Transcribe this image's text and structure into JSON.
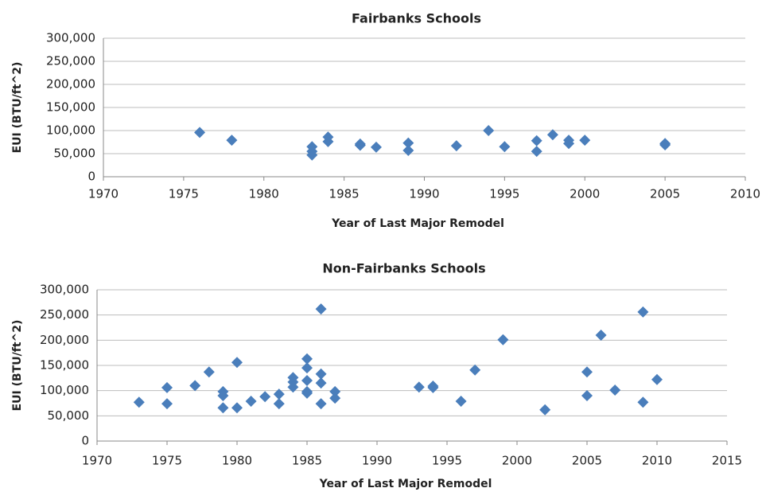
{
  "chart_data": [
    {
      "type": "scatter",
      "title": "Fairbanks Schools",
      "x_label": "Year of Last Major Remodel",
      "y_label": "EUI (BTU/ft^2)",
      "color": "#4a7ebb",
      "x": [
        1976,
        1978,
        1983,
        1983,
        1983,
        1984,
        1984,
        1986,
        1986,
        1987,
        1989,
        1989,
        1992,
        1994,
        1995,
        1997,
        1997,
        1998,
        1999,
        1999,
        2000,
        2005,
        2005
      ],
      "values": [
        96000,
        79000,
        65000,
        55000,
        47000,
        86000,
        76000,
        71000,
        68000,
        64000,
        73000,
        57000,
        67000,
        100000,
        65000,
        78000,
        55000,
        91000,
        79000,
        72000,
        79000,
        72000,
        69000
      ],
      "xlim": [
        1970,
        2010
      ],
      "xticks": [
        1970,
        1975,
        1980,
        1985,
        1990,
        1995,
        2000,
        2005,
        2010
      ],
      "ylim": [
        0,
        300000
      ],
      "yticks": [
        0,
        {
          "value": 50000,
          "label": "50,000"
        },
        {
          "value": 100000,
          "label": "100,000"
        },
        {
          "value": 150000,
          "label": "150,000"
        },
        {
          "value": 200000,
          "label": "200,000"
        },
        {
          "value": 250000,
          "label": "250,000"
        },
        {
          "value": 300000,
          "label": "300,000"
        }
      ],
      "grid": true
    },
    {
      "type": "scatter",
      "title": "Non-Fairbanks Schools",
      "x_label": "Year of Last Major Remodel",
      "y_label": "EUI (BTU/ft^2)",
      "color": "#4a7ebb",
      "x": [
        1973,
        1975,
        1975,
        1977,
        1978,
        1979,
        1979,
        1979,
        1980,
        1980,
        1981,
        1982,
        1983,
        1983,
        1984,
        1984,
        1984,
        1985,
        1985,
        1985,
        1985,
        1985,
        1986,
        1986,
        1986,
        1986,
        1987,
        1987,
        1993,
        1994,
        1994,
        1996,
        1997,
        1999,
        2002,
        2005,
        2005,
        2006,
        2007,
        2009,
        2009,
        2010
      ],
      "values": [
        77000,
        106000,
        74000,
        110000,
        137000,
        98000,
        90000,
        66000,
        156000,
        66000,
        79000,
        88000,
        93000,
        74000,
        126000,
        117000,
        107000,
        163000,
        145000,
        120000,
        98000,
        95000,
        262000,
        133000,
        115000,
        74000,
        98000,
        85000,
        107000,
        109000,
        106000,
        79000,
        141000,
        201000,
        62000,
        137000,
        90000,
        210000,
        101000,
        256000,
        77000,
        122000
      ],
      "xlim": [
        1970,
        2015
      ],
      "xticks": [
        1970,
        1975,
        1980,
        1985,
        1990,
        1995,
        2000,
        2005,
        2010,
        2015
      ],
      "ylim": [
        0,
        300000
      ],
      "yticks": [
        0,
        {
          "value": 50000,
          "label": "50,000"
        },
        {
          "value": 100000,
          "label": "100,000"
        },
        {
          "value": 150000,
          "label": "150,000"
        },
        {
          "value": 200000,
          "label": "200,000"
        },
        {
          "value": 250000,
          "label": "250,000"
        },
        {
          "value": 300000,
          "label": "300,000"
        }
      ],
      "grid": true
    }
  ]
}
